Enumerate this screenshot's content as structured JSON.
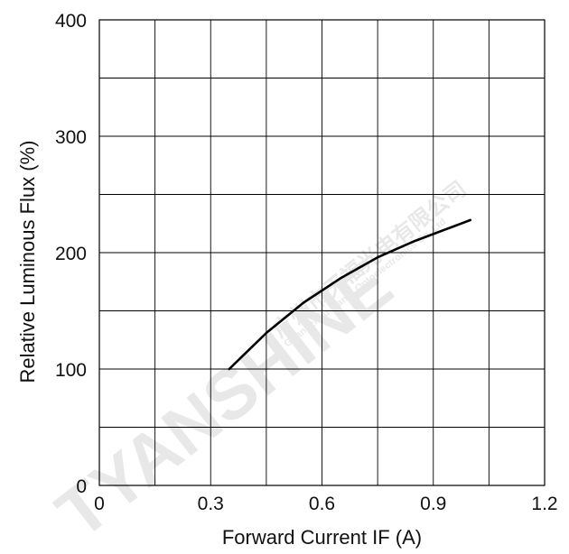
{
  "chart_data": {
    "type": "line",
    "title": "",
    "xlabel": "Forward Current IF (A)",
    "ylabel": "Relative Luminous Flux (%)",
    "xlim": [
      0,
      1.2
    ],
    "ylim": [
      0,
      400
    ],
    "x_ticks": [
      "0",
      "0.3",
      "0.6",
      "0.9",
      "1.2"
    ],
    "y_ticks": [
      "0",
      "100",
      "200",
      "300",
      "400"
    ],
    "grid": true,
    "series": [
      {
        "x": [
          0.35,
          0.45,
          0.55,
          0.65,
          0.75,
          0.85,
          0.95,
          1.0
        ],
        "y": [
          100,
          131,
          157,
          178,
          196,
          210,
          222,
          228
        ],
        "color": "#000000"
      }
    ]
  },
  "watermark": {
    "brand": "TYANSHINE",
    "company_cn": "广州市天福光电有限公司",
    "company_en": "Guangzhou Tianfu Optoelectronics Co.,Ltd"
  }
}
